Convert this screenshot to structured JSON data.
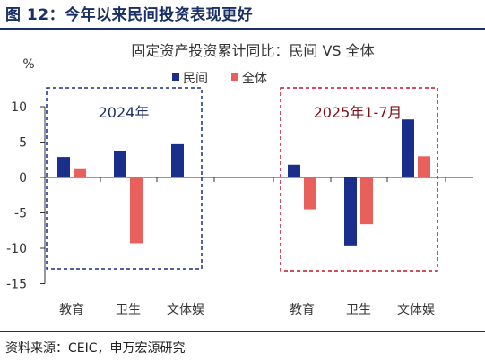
{
  "figure": {
    "title": "图 12：今年以来民间投资表现更好",
    "source": "资料来源：CEIC，申万宏源研究"
  },
  "chart_data": {
    "type": "bar",
    "title": "固定资产投资累计同比：民间 VS 全体",
    "ylabel": "%",
    "ylim": [
      -15,
      10
    ],
    "yticks": [
      10,
      5,
      0,
      -5,
      -10,
      -15
    ],
    "grid": false,
    "legend_position": "top-right",
    "groups": [
      {
        "label": "2024年",
        "categories": [
          "教育",
          "卫生",
          "文体娱"
        ],
        "series": [
          {
            "name": "民间",
            "values": [
              2.9,
              3.8,
              4.7
            ]
          },
          {
            "name": "全体",
            "values": [
              1.3,
              -9.3,
              0
            ]
          }
        ]
      },
      {
        "label": "2025年1-7月",
        "categories": [
          "教育",
          "卫生",
          "文体娱"
        ],
        "series": [
          {
            "name": "民间",
            "values": [
              1.8,
              -9.6,
              8.2
            ]
          },
          {
            "name": "全体",
            "values": [
              -4.5,
              -6.6,
              3.0
            ]
          }
        ]
      }
    ],
    "series_colors": {
      "民间": "#1a2f8c",
      "全体": "#e8605c"
    },
    "box_colors": [
      "#1a2f8c",
      "#c0152a"
    ]
  }
}
